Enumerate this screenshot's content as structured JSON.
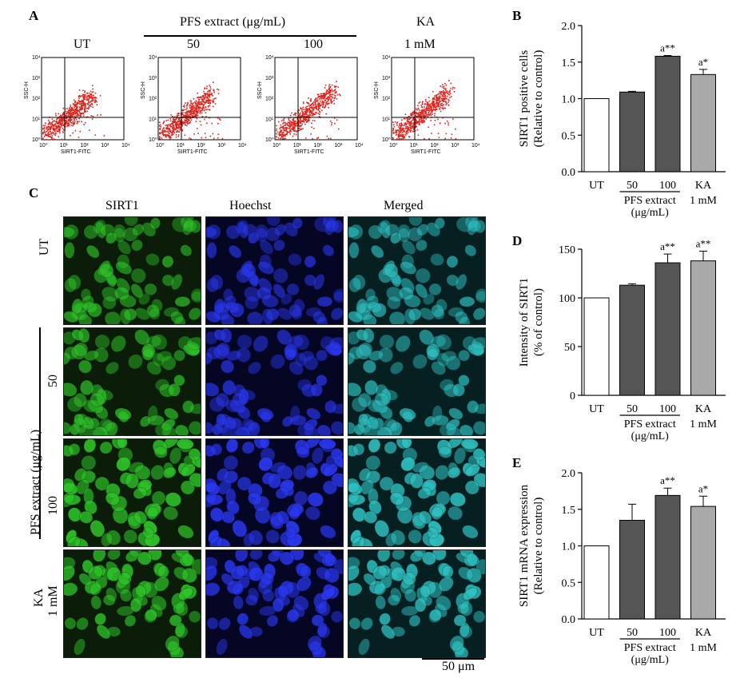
{
  "panel_a": {
    "letter": "A",
    "group_header": "PFS extract (μg/mL)",
    "ka_header": "KA",
    "plots": [
      {
        "label": "UT",
        "spread": 1.0
      },
      {
        "label": "50",
        "spread": 1.05
      },
      {
        "label": "100",
        "spread": 1.15
      },
      {
        "label": "1 mM",
        "spread": 1.1
      }
    ],
    "y_axis_label": "SSC-H",
    "x_axis_label": "SIRT1-FITC",
    "tick_labels": [
      "10⁰",
      "10¹",
      "10²",
      "10³",
      "10⁴"
    ]
  },
  "panel_c": {
    "letter": "C",
    "column_headers": [
      "SIRT1",
      "Hoechst",
      "Merged"
    ],
    "row_labels": [
      "UT",
      "50",
      "100",
      "KA",
      "1 mM"
    ],
    "side_group_label": "PFS extract (μg/mL)",
    "scale_bar": "50 μm",
    "colors": {
      "sirt1": "#2fc42a",
      "hoechst": "#2a38f0",
      "merged": "#30c0c0"
    }
  },
  "chart_data": [
    {
      "panel": "B",
      "type": "bar",
      "categories": [
        "UT",
        "50",
        "100",
        "KA"
      ],
      "values": [
        1.0,
        1.09,
        1.58,
        1.33
      ],
      "errors": [
        0.0,
        0.01,
        0.01,
        0.07
      ],
      "annotations": [
        "",
        "",
        "a**",
        "a*"
      ],
      "ylabel": "SIRT1 positive cells",
      "ylabel2": "(Relative to control)",
      "ylim": [
        0,
        2.0
      ],
      "yticks": [
        "0.0",
        "0.5",
        "1.0",
        "1.5",
        "2.0"
      ],
      "ytick_values": [
        0,
        0.5,
        1.0,
        1.5,
        2.0
      ],
      "group_label": "PFS extract",
      "group_unit": "(μg/mL)",
      "ka_sub": "1 mM",
      "colors": [
        "#ffffff",
        "#555555",
        "#555555",
        "#a9a9a9"
      ]
    },
    {
      "panel": "D",
      "type": "bar",
      "categories": [
        "UT",
        "50",
        "100",
        "KA"
      ],
      "values": [
        100,
        113,
        136,
        138
      ],
      "errors": [
        0,
        1.5,
        9,
        10
      ],
      "annotations": [
        "",
        "",
        "a**",
        "a**"
      ],
      "ylabel": "Intensity of SIRT1",
      "ylabel2": "(% of control)",
      "ylim": [
        0,
        150
      ],
      "yticks": [
        "0",
        "50",
        "100",
        "150"
      ],
      "ytick_values": [
        0,
        50,
        100,
        150
      ],
      "group_label": "PFS extract",
      "group_unit": "(μg/mL)",
      "ka_sub": "1 mM",
      "colors": [
        "#ffffff",
        "#555555",
        "#555555",
        "#a9a9a9"
      ]
    },
    {
      "panel": "E",
      "type": "bar",
      "categories": [
        "UT",
        "50",
        "100",
        "KA"
      ],
      "values": [
        1.0,
        1.35,
        1.69,
        1.54
      ],
      "errors": [
        0.0,
        0.22,
        0.1,
        0.14
      ],
      "annotations": [
        "",
        "",
        "a**",
        "a*"
      ],
      "ylabel": "SIRT1 mRNA expression",
      "ylabel2": "(Relative to control)",
      "ylim": [
        0,
        2.0
      ],
      "yticks": [
        "0.0",
        "0.5",
        "1.0",
        "1.5",
        "2.0"
      ],
      "ytick_values": [
        0,
        0.5,
        1.0,
        1.5,
        2.0
      ],
      "group_label": "PFS extract",
      "group_unit": "(μg/mL)",
      "ka_sub": "1 mM",
      "colors": [
        "#ffffff",
        "#555555",
        "#555555",
        "#a9a9a9"
      ]
    }
  ]
}
